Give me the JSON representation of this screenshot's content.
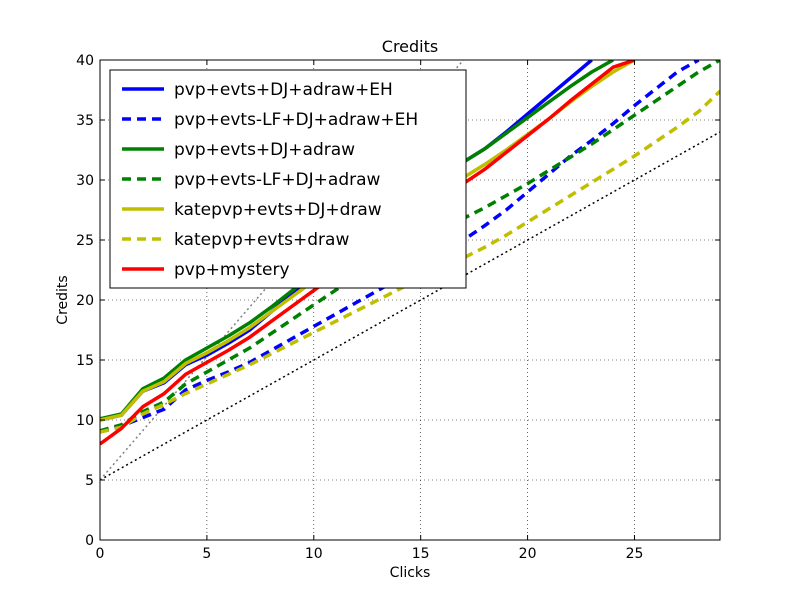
{
  "chart_data": {
    "type": "line",
    "title": "Credits",
    "xlabel": "Clicks",
    "ylabel": "Credits",
    "xlim": [
      0,
      29
    ],
    "ylim": [
      0,
      40
    ],
    "xticks": [
      0,
      5,
      10,
      15,
      20,
      25
    ],
    "yticks": [
      0,
      5,
      10,
      15,
      20,
      25,
      30,
      35,
      40
    ],
    "grid": true,
    "legend_position": "top-left",
    "series": [
      {
        "name": "pvp+evts+DJ+adraw+EH",
        "color": "#0000ff",
        "style": "solid",
        "points": [
          [
            0,
            10.0
          ],
          [
            1,
            10.4
          ],
          [
            2,
            12.4
          ],
          [
            3,
            13.1
          ],
          [
            4,
            14.6
          ],
          [
            5,
            15.4
          ],
          [
            6,
            16.4
          ],
          [
            7,
            17.5
          ],
          [
            8,
            19.0
          ],
          [
            9,
            20.5
          ],
          [
            10,
            22.0
          ],
          [
            11,
            23.5
          ],
          [
            12,
            25.0
          ],
          [
            13,
            26.4
          ],
          [
            14,
            27.8
          ],
          [
            15,
            29.2
          ],
          [
            16,
            30.5
          ],
          [
            17,
            31.5
          ],
          [
            18,
            32.6
          ],
          [
            19,
            34.0
          ],
          [
            20,
            35.5
          ],
          [
            21,
            37.0
          ],
          [
            22,
            38.5
          ],
          [
            23,
            40.0
          ]
        ]
      },
      {
        "name": "pvp+evts-LF+DJ+adraw+EH",
        "color": "#0000ff",
        "style": "dashed",
        "points": [
          [
            0,
            9.0
          ],
          [
            1,
            9.5
          ],
          [
            2,
            10.2
          ],
          [
            3,
            10.9
          ],
          [
            4,
            12.5
          ],
          [
            5,
            13.3
          ],
          [
            6,
            14.0
          ],
          [
            7,
            14.8
          ],
          [
            8,
            15.8
          ],
          [
            9,
            16.8
          ],
          [
            10,
            17.8
          ],
          [
            11,
            18.8
          ],
          [
            12,
            19.8
          ],
          [
            13,
            20.8
          ],
          [
            14,
            21.8
          ],
          [
            15,
            22.8
          ],
          [
            16,
            23.8
          ],
          [
            17,
            25.0
          ],
          [
            18,
            26.2
          ],
          [
            19,
            27.5
          ],
          [
            20,
            29.0
          ],
          [
            21,
            30.5
          ],
          [
            22,
            32.0
          ],
          [
            23,
            33.3
          ],
          [
            24,
            34.7
          ],
          [
            25,
            36.2
          ],
          [
            26,
            37.6
          ],
          [
            27,
            39.0
          ],
          [
            28,
            40.0
          ]
        ]
      },
      {
        "name": "pvp+evts+DJ+adraw",
        "color": "#008000",
        "style": "solid",
        "points": [
          [
            0,
            10.1
          ],
          [
            1,
            10.5
          ],
          [
            2,
            12.6
          ],
          [
            3,
            13.5
          ],
          [
            4,
            15.0
          ],
          [
            5,
            16.0
          ],
          [
            6,
            17.0
          ],
          [
            7,
            18.1
          ],
          [
            8,
            19.4
          ],
          [
            9,
            20.8
          ],
          [
            10,
            22.2
          ],
          [
            11,
            23.6
          ],
          [
            12,
            25.0
          ],
          [
            13,
            26.4
          ],
          [
            14,
            27.8
          ],
          [
            15,
            29.2
          ],
          [
            16,
            30.5
          ],
          [
            17,
            31.5
          ],
          [
            18,
            32.6
          ],
          [
            19,
            33.9
          ],
          [
            20,
            35.2
          ],
          [
            21,
            36.5
          ],
          [
            22,
            37.8
          ],
          [
            23,
            39.0
          ],
          [
            24,
            40.0
          ]
        ]
      },
      {
        "name": "pvp+evts-LF+DJ+adraw",
        "color": "#008000",
        "style": "dashed",
        "points": [
          [
            0,
            9.1
          ],
          [
            1,
            9.6
          ],
          [
            2,
            10.7
          ],
          [
            3,
            11.5
          ],
          [
            4,
            13.0
          ],
          [
            5,
            14.0
          ],
          [
            6,
            15.0
          ],
          [
            7,
            16.0
          ],
          [
            8,
            17.2
          ],
          [
            9,
            18.4
          ],
          [
            10,
            19.6
          ],
          [
            11,
            20.8
          ],
          [
            12,
            22.0
          ],
          [
            13,
            23.0
          ],
          [
            14,
            24.0
          ],
          [
            15,
            25.0
          ],
          [
            16,
            25.9
          ],
          [
            17,
            26.8
          ],
          [
            18,
            27.7
          ],
          [
            19,
            28.7
          ],
          [
            20,
            29.7
          ],
          [
            21,
            30.8
          ],
          [
            22,
            31.9
          ],
          [
            23,
            33.0
          ],
          [
            24,
            34.2
          ],
          [
            25,
            35.4
          ],
          [
            26,
            36.6
          ],
          [
            27,
            37.8
          ],
          [
            28,
            39.0
          ],
          [
            29,
            40.0
          ]
        ]
      },
      {
        "name": "katepvp+evts+DJ+draw",
        "color": "#bfbf00",
        "style": "solid",
        "points": [
          [
            0,
            10.0
          ],
          [
            1,
            10.4
          ],
          [
            2,
            12.4
          ],
          [
            3,
            13.2
          ],
          [
            4,
            14.7
          ],
          [
            5,
            15.6
          ],
          [
            6,
            16.6
          ],
          [
            7,
            17.7
          ],
          [
            8,
            19.0
          ],
          [
            9,
            20.3
          ],
          [
            10,
            21.6
          ],
          [
            11,
            22.9
          ],
          [
            12,
            24.2
          ],
          [
            13,
            25.5
          ],
          [
            14,
            26.8
          ],
          [
            15,
            28.0
          ],
          [
            16,
            29.2
          ],
          [
            17,
            30.2
          ],
          [
            18,
            31.3
          ],
          [
            19,
            32.5
          ],
          [
            20,
            33.8
          ],
          [
            21,
            35.1
          ],
          [
            22,
            36.5
          ],
          [
            23,
            37.8
          ],
          [
            24,
            39.0
          ],
          [
            25,
            40.0
          ]
        ]
      },
      {
        "name": "katepvp+evts+draw",
        "color": "#bfbf00",
        "style": "dashed",
        "points": [
          [
            0,
            9.0
          ],
          [
            1,
            9.4
          ],
          [
            2,
            10.5
          ],
          [
            3,
            11.3
          ],
          [
            4,
            12.2
          ],
          [
            5,
            13.0
          ],
          [
            6,
            13.8
          ],
          [
            7,
            14.6
          ],
          [
            8,
            15.5
          ],
          [
            9,
            16.4
          ],
          [
            10,
            17.3
          ],
          [
            11,
            18.2
          ],
          [
            12,
            19.1
          ],
          [
            13,
            20.0
          ],
          [
            14,
            20.9
          ],
          [
            15,
            21.8
          ],
          [
            16,
            22.7
          ],
          [
            17,
            23.5
          ],
          [
            18,
            24.4
          ],
          [
            19,
            25.4
          ],
          [
            20,
            26.5
          ],
          [
            21,
            27.6
          ],
          [
            22,
            28.7
          ],
          [
            23,
            29.8
          ],
          [
            24,
            30.9
          ],
          [
            25,
            32.0
          ],
          [
            26,
            33.2
          ],
          [
            27,
            34.4
          ],
          [
            28,
            35.7
          ],
          [
            29,
            37.4
          ]
        ]
      },
      {
        "name": "pvp+mystery",
        "color": "#ff0000",
        "style": "solid",
        "points": [
          [
            0,
            8.0
          ],
          [
            1,
            9.3
          ],
          [
            2,
            11.1
          ],
          [
            3,
            12.2
          ],
          [
            4,
            13.8
          ],
          [
            5,
            14.8
          ],
          [
            6,
            15.8
          ],
          [
            7,
            16.9
          ],
          [
            8,
            18.2
          ],
          [
            9,
            19.5
          ],
          [
            10,
            20.8
          ],
          [
            11,
            22.1
          ],
          [
            12,
            23.4
          ],
          [
            13,
            24.7
          ],
          [
            14,
            26.0
          ],
          [
            15,
            27.3
          ],
          [
            16,
            28.5
          ],
          [
            17,
            29.7
          ],
          [
            18,
            30.9
          ],
          [
            19,
            32.3
          ],
          [
            20,
            33.7
          ],
          [
            21,
            35.1
          ],
          [
            22,
            36.6
          ],
          [
            23,
            38.0
          ],
          [
            24,
            39.4
          ],
          [
            25,
            40.0
          ]
        ]
      }
    ],
    "reference_lines": [
      {
        "color": "#000000",
        "style": "dotted",
        "points": [
          [
            0,
            5
          ],
          [
            29,
            34
          ]
        ]
      },
      {
        "color": "#808080",
        "style": "dotted",
        "points": [
          [
            0,
            5
          ],
          [
            17,
            40
          ]
        ]
      }
    ]
  }
}
